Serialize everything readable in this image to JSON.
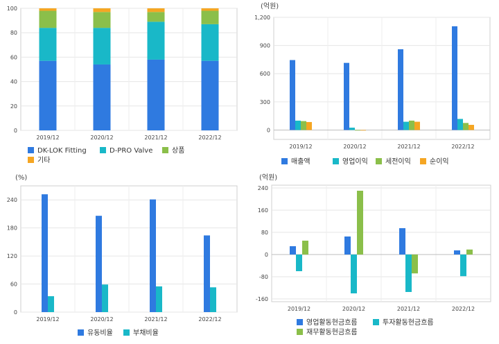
{
  "chart_data": [
    {
      "type": "bar",
      "stacked": true,
      "title": "",
      "unit_label": "",
      "categories": [
        "2019/12",
        "2020/12",
        "2021/12",
        "2022/12"
      ],
      "ylim": [
        0,
        100
      ],
      "yticks": [
        0,
        20,
        40,
        60,
        80,
        100
      ],
      "grid": true,
      "legend_position": "bottom",
      "series": [
        {
          "name": "DK-LOK Fitting",
          "color": "#2f7ae0",
          "values": [
            57,
            54,
            58,
            57
          ]
        },
        {
          "name": "D-PRO Valve",
          "color": "#19b8c8",
          "values": [
            27,
            30,
            31,
            30
          ]
        },
        {
          "name": "상품",
          "color": "#8bbf4a",
          "values": [
            14,
            13,
            8,
            11
          ]
        },
        {
          "name": "기타",
          "color": "#f5a623",
          "values": [
            2,
            3,
            3,
            2
          ]
        }
      ]
    },
    {
      "type": "bar",
      "title": "",
      "unit_label": "(억원)",
      "categories": [
        "2019/12",
        "2020/12",
        "2021/12",
        "2022/12"
      ],
      "ylim": [
        -100,
        1200
      ],
      "yticks": [
        0,
        300,
        600,
        900,
        1200
      ],
      "ytick_labels": [
        "0",
        "300",
        "600",
        "900",
        "1,200"
      ],
      "grid": true,
      "legend_position": "bottom",
      "series": [
        {
          "name": "매출액",
          "color": "#2f7ae0",
          "values": [
            745,
            715,
            860,
            1105
          ]
        },
        {
          "name": "영업이익",
          "color": "#19b8c8",
          "values": [
            100,
            25,
            88,
            118
          ]
        },
        {
          "name": "세전이익",
          "color": "#8bbf4a",
          "values": [
            95,
            -5,
            100,
            75
          ]
        },
        {
          "name": "순이익",
          "color": "#f5a623",
          "values": [
            85,
            -5,
            88,
            55
          ]
        }
      ]
    },
    {
      "type": "bar",
      "title": "",
      "unit_label": "(%)",
      "categories": [
        "2019/12",
        "2020/12",
        "2021/12",
        "2022/12"
      ],
      "ylim": [
        0,
        270
      ],
      "yticks": [
        0,
        60,
        120,
        180,
        240
      ],
      "grid": true,
      "legend_position": "bottom",
      "series": [
        {
          "name": "유동비율",
          "color": "#2f7ae0",
          "values": [
            252,
            206,
            241,
            164
          ]
        },
        {
          "name": "부채비율",
          "color": "#19b8c8",
          "values": [
            34,
            59,
            55,
            53
          ]
        }
      ]
    },
    {
      "type": "bar",
      "title": "",
      "unit_label": "(억원)",
      "categories": [
        "2019/12",
        "2020/12",
        "2021/12",
        "2022/12"
      ],
      "ylim": [
        -170,
        250
      ],
      "yticks": [
        -160,
        -80,
        0,
        80,
        160,
        240
      ],
      "grid": true,
      "legend_position": "bottom",
      "series": [
        {
          "name": "영업활동현금흐름",
          "color": "#2f7ae0",
          "values": [
            30,
            65,
            95,
            15
          ]
        },
        {
          "name": "투자활동현금흐름",
          "color": "#19b8c8",
          "values": [
            -60,
            -140,
            -135,
            -78
          ]
        },
        {
          "name": "재무활동현금흐름",
          "color": "#8bbf4a",
          "values": [
            50,
            230,
            -68,
            18
          ]
        }
      ]
    }
  ]
}
